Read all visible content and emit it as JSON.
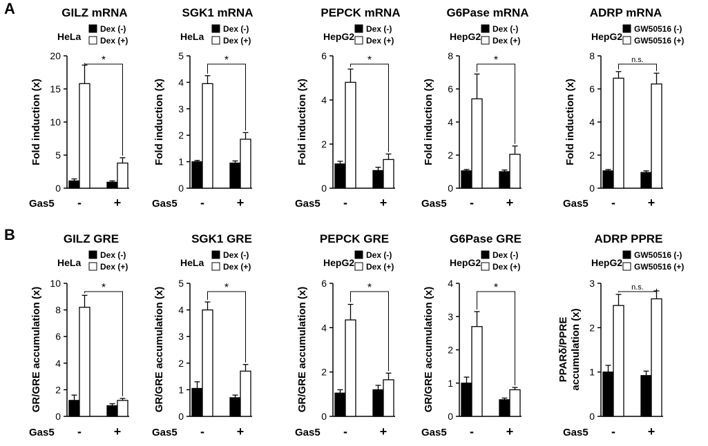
{
  "panels": [
    {
      "letter": "A"
    },
    {
      "letter": "B"
    }
  ],
  "legend_labels": {
    "dex_minus": "Dex (-)",
    "dex_plus": "Dex (+)",
    "gw_minus": "GW50516 (-)",
    "gw_plus": "GW50516 (+)"
  },
  "colors": {
    "filled": "#000000",
    "open": "#ffffff"
  },
  "chart_data": [
    {
      "type": "bar",
      "panel": "A",
      "title": "GILZ mRNA",
      "cell": "HeLa",
      "ylabel": "Fold induction (x)",
      "ylim": [
        0,
        20
      ],
      "yticks": [
        0,
        5,
        10,
        15,
        20
      ],
      "xlabel": "Gas5",
      "categories": [
        "-",
        "+"
      ],
      "legend": [
        "Dex (-)",
        "Dex (+)"
      ],
      "series": [
        {
          "name": "Dex (-)",
          "values": [
            1.1,
            0.9
          ],
          "errors": [
            0.3,
            0.2
          ]
        },
        {
          "name": "Dex (+)",
          "values": [
            15.8,
            3.8
          ],
          "errors": [
            2.8,
            0.8
          ]
        }
      ],
      "annotation": "*"
    },
    {
      "type": "bar",
      "panel": "A",
      "title": "SGK1 mRNA",
      "cell": "HeLa",
      "ylabel": "Fold induction (x)",
      "ylim": [
        0,
        5
      ],
      "yticks": [
        0,
        1,
        2,
        3,
        4,
        5
      ],
      "xlabel": "Gas5",
      "categories": [
        "-",
        "+"
      ],
      "legend": [
        "Dex (-)",
        "Dex (+)"
      ],
      "series": [
        {
          "name": "Dex (-)",
          "values": [
            1.0,
            0.95
          ],
          "errors": [
            0.05,
            0.08
          ]
        },
        {
          "name": "Dex (+)",
          "values": [
            3.95,
            1.85
          ],
          "errors": [
            0.3,
            0.25
          ]
        }
      ],
      "annotation": "*"
    },
    {
      "type": "bar",
      "panel": "A",
      "title": "PEPCK mRNA",
      "cell": "HepG2",
      "ylabel": "Fold induction (x)",
      "ylim": [
        0,
        6
      ],
      "yticks": [
        0,
        2,
        4,
        6
      ],
      "xlabel": "Gas5",
      "categories": [
        "-",
        "+"
      ],
      "legend": [
        "Dex (-)",
        "Dex (+)"
      ],
      "series": [
        {
          "name": "Dex (-)",
          "values": [
            1.1,
            0.8
          ],
          "errors": [
            0.12,
            0.15
          ]
        },
        {
          "name": "Dex (+)",
          "values": [
            4.8,
            1.3
          ],
          "errors": [
            0.6,
            0.25
          ]
        }
      ],
      "annotation": "*"
    },
    {
      "type": "bar",
      "panel": "A",
      "title": "G6Pase mRNA",
      "cell": "HepG2",
      "ylabel": "Fold induction (x)",
      "ylim": [
        0,
        8
      ],
      "yticks": [
        0,
        2,
        4,
        6,
        8
      ],
      "xlabel": "Gas5",
      "categories": [
        "-",
        "+"
      ],
      "legend": [
        "Dex (-)",
        "Dex (+)"
      ],
      "series": [
        {
          "name": "Dex (-)",
          "values": [
            1.05,
            1.0
          ],
          "errors": [
            0.08,
            0.1
          ]
        },
        {
          "name": "Dex (+)",
          "values": [
            5.4,
            2.05
          ],
          "errors": [
            1.5,
            0.5
          ]
        }
      ],
      "annotation": "*"
    },
    {
      "type": "bar",
      "panel": "A",
      "title": "ADRP mRNA",
      "cell": "HepG2",
      "ylabel": "Fold induction (x)",
      "ylim": [
        0,
        8
      ],
      "yticks": [
        0,
        2,
        4,
        6,
        8
      ],
      "xlabel": "Gas5",
      "categories": [
        "-",
        "+"
      ],
      "legend": [
        "GW50516 (-)",
        "GW50516 (+)"
      ],
      "series": [
        {
          "name": "GW50516 (-)",
          "values": [
            1.05,
            0.95
          ],
          "errors": [
            0.08,
            0.1
          ]
        },
        {
          "name": "GW50516 (+)",
          "values": [
            6.65,
            6.3
          ],
          "errors": [
            0.4,
            0.65
          ]
        }
      ],
      "annotation": "n.s."
    },
    {
      "type": "bar",
      "panel": "B",
      "title": "GILZ GRE",
      "cell": "HeLa",
      "ylabel": "GR/GRE accumulation (x)",
      "ylim": [
        0,
        10
      ],
      "yticks": [
        0,
        2,
        4,
        6,
        8,
        10
      ],
      "xlabel": "Gas5",
      "categories": [
        "-",
        "+"
      ],
      "legend": [
        "Dex (-)",
        "Dex (+)"
      ],
      "series": [
        {
          "name": "Dex (-)",
          "values": [
            1.2,
            0.8
          ],
          "errors": [
            0.4,
            0.15
          ]
        },
        {
          "name": "Dex (+)",
          "values": [
            8.2,
            1.2
          ],
          "errors": [
            0.9,
            0.15
          ]
        }
      ],
      "annotation": "*"
    },
    {
      "type": "bar",
      "panel": "B",
      "title": "SGK1 GRE",
      "cell": "HeLa",
      "ylabel": "GR/GRE accumulation (x)",
      "ylim": [
        0,
        5
      ],
      "yticks": [
        0,
        1,
        2,
        3,
        4,
        5
      ],
      "xlabel": "Gas5",
      "categories": [
        "-",
        "+"
      ],
      "legend": [
        "Dex (-)",
        "Dex (+)"
      ],
      "series": [
        {
          "name": "Dex (-)",
          "values": [
            1.05,
            0.7
          ],
          "errors": [
            0.25,
            0.1
          ]
        },
        {
          "name": "Dex (+)",
          "values": [
            4.0,
            1.7
          ],
          "errors": [
            0.3,
            0.25
          ]
        }
      ],
      "annotation": "*"
    },
    {
      "type": "bar",
      "panel": "B",
      "title": "PEPCK GRE",
      "cell": "HepG2",
      "ylabel": "GR/GRE accumulation (x)",
      "ylim": [
        0,
        6
      ],
      "yticks": [
        0,
        2,
        4,
        6
      ],
      "xlabel": "Gas5",
      "categories": [
        "-",
        "+"
      ],
      "legend": [
        "Dex (-)",
        "Dex (+)"
      ],
      "series": [
        {
          "name": "Dex (-)",
          "values": [
            1.05,
            1.2
          ],
          "errors": [
            0.15,
            0.2
          ]
        },
        {
          "name": "Dex (+)",
          "values": [
            4.35,
            1.65
          ],
          "errors": [
            0.7,
            0.3
          ]
        }
      ],
      "annotation": "*"
    },
    {
      "type": "bar",
      "panel": "B",
      "title": "G6Pase GRE",
      "cell": "HepG2",
      "ylabel": "GR/GRE accumulation (x)",
      "ylim": [
        0,
        4
      ],
      "yticks": [
        0,
        1,
        2,
        3,
        4
      ],
      "xlabel": "Gas5",
      "categories": [
        "-",
        "+"
      ],
      "legend": [
        "Dex (-)",
        "Dex (+)"
      ],
      "series": [
        {
          "name": "Dex (-)",
          "values": [
            1.0,
            0.5
          ],
          "errors": [
            0.18,
            0.05
          ]
        },
        {
          "name": "Dex (+)",
          "values": [
            2.7,
            0.8
          ],
          "errors": [
            0.45,
            0.07
          ]
        }
      ],
      "annotation": "*"
    },
    {
      "type": "bar",
      "panel": "B",
      "title": "ADRP PPRE",
      "cell": "HepG2",
      "ylabel": "PPARδ/PPRE",
      "ylabel2": "accumulation (x)",
      "ylim": [
        0,
        3
      ],
      "yticks": [
        0,
        1,
        2,
        3
      ],
      "xlabel": "Gas5",
      "categories": [
        "-",
        "+"
      ],
      "legend": [
        "GW50516 (-)",
        "GW50516 (+)"
      ],
      "series": [
        {
          "name": "GW50516 (-)",
          "values": [
            1.0,
            0.92
          ],
          "errors": [
            0.15,
            0.1
          ]
        },
        {
          "name": "GW50516 (+)",
          "values": [
            2.5,
            2.65
          ],
          "errors": [
            0.25,
            0.18
          ]
        }
      ],
      "annotation": "n.s."
    }
  ]
}
